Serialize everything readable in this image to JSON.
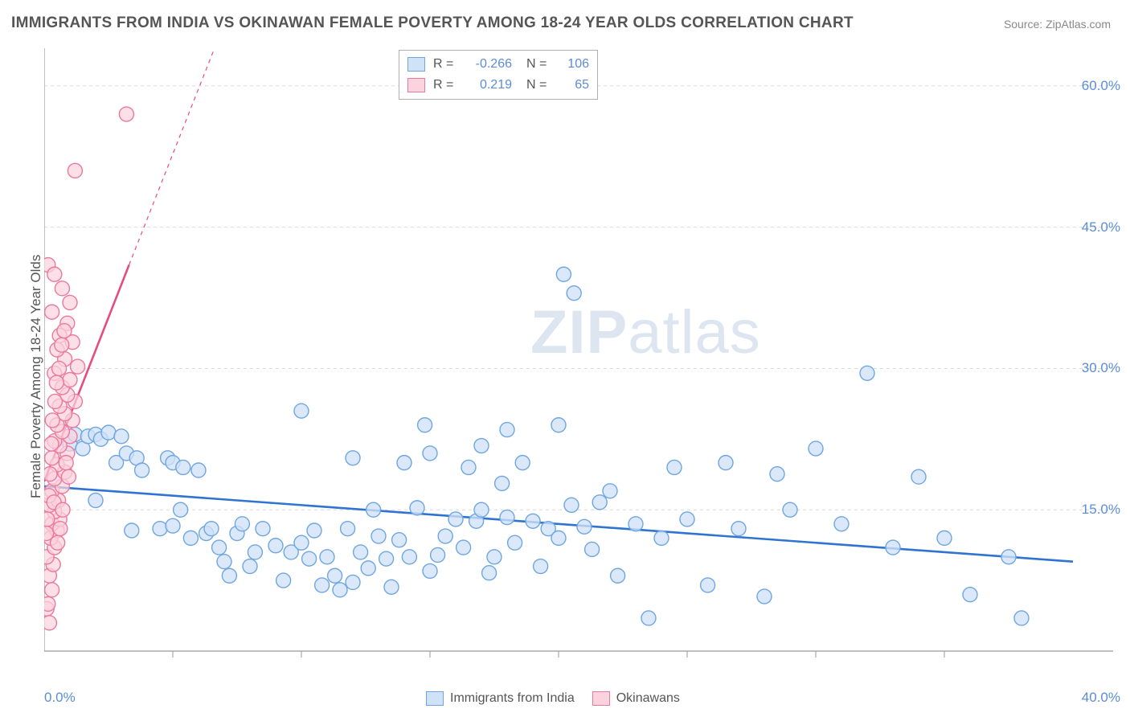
{
  "title": "IMMIGRANTS FROM INDIA VS OKINAWAN FEMALE POVERTY AMONG 18-24 YEAR OLDS CORRELATION CHART",
  "source": "Source: ZipAtlas.com",
  "ylabel": "Female Poverty Among 18-24 Year Olds",
  "watermark_a": "ZIP",
  "watermark_b": "atlas",
  "chart": {
    "type": "scatter",
    "xlim": [
      0,
      40
    ],
    "ylim": [
      0,
      64
    ],
    "x_axis_origin": 0,
    "x_ticks_minor": [
      5,
      10,
      15,
      20,
      25,
      30,
      35
    ],
    "x_tick_labels": [
      {
        "val": 0.0,
        "label": "0.0%"
      },
      {
        "val": 40.0,
        "label": "40.0%"
      }
    ],
    "y_grid": [
      15,
      30,
      45,
      60
    ],
    "y_tick_labels": [
      {
        "val": 15,
        "label": "15.0%"
      },
      {
        "val": 30,
        "label": "30.0%"
      },
      {
        "val": 45,
        "label": "45.0%"
      },
      {
        "val": 60,
        "label": "60.0%"
      }
    ],
    "grid_color": "#d8d8d8",
    "axis_color": "#9a9a9a",
    "background_color": "#ffffff",
    "marker_radius": 9,
    "marker_stroke_width": 1.4,
    "series": [
      {
        "name": "Immigrants from India",
        "fill": "#cfe2f8",
        "stroke": "#6fa6e0",
        "fill_opacity": 0.78,
        "trend": {
          "x1": 0,
          "y1": 17.5,
          "x2": 40,
          "y2": 9.5,
          "color": "#2e74d0",
          "width": 2.6
        },
        "legend_R": "-0.266",
        "legend_N": "106",
        "points": [
          [
            1.0,
            22.0
          ],
          [
            1.2,
            23.0
          ],
          [
            1.5,
            21.5
          ],
          [
            1.7,
            22.8
          ],
          [
            2.0,
            23.0
          ],
          [
            2.0,
            16.0
          ],
          [
            2.2,
            22.5
          ],
          [
            2.5,
            23.2
          ],
          [
            2.8,
            20.0
          ],
          [
            3.0,
            22.8
          ],
          [
            3.2,
            21.0
          ],
          [
            3.4,
            12.8
          ],
          [
            3.6,
            20.5
          ],
          [
            3.8,
            19.2
          ],
          [
            4.5,
            13.0
          ],
          [
            4.8,
            20.5
          ],
          [
            5.0,
            13.3
          ],
          [
            5.0,
            20.0
          ],
          [
            5.3,
            15.0
          ],
          [
            5.4,
            19.5
          ],
          [
            5.7,
            12.0
          ],
          [
            6.0,
            19.2
          ],
          [
            6.3,
            12.5
          ],
          [
            6.5,
            13.0
          ],
          [
            6.8,
            11.0
          ],
          [
            7.0,
            9.5
          ],
          [
            7.2,
            8.0
          ],
          [
            7.5,
            12.5
          ],
          [
            7.7,
            13.5
          ],
          [
            8.0,
            9.0
          ],
          [
            8.2,
            10.5
          ],
          [
            8.5,
            13.0
          ],
          [
            9.0,
            11.2
          ],
          [
            9.3,
            7.5
          ],
          [
            9.6,
            10.5
          ],
          [
            10.0,
            11.5
          ],
          [
            10.0,
            25.5
          ],
          [
            10.3,
            9.8
          ],
          [
            10.5,
            12.8
          ],
          [
            10.8,
            7.0
          ],
          [
            11.0,
            10.0
          ],
          [
            11.3,
            8.0
          ],
          [
            11.5,
            6.5
          ],
          [
            11.8,
            13.0
          ],
          [
            12.0,
            20.5
          ],
          [
            12.0,
            7.3
          ],
          [
            12.3,
            10.5
          ],
          [
            12.6,
            8.8
          ],
          [
            12.8,
            15.0
          ],
          [
            13.0,
            12.2
          ],
          [
            13.3,
            9.8
          ],
          [
            13.5,
            6.8
          ],
          [
            13.8,
            11.8
          ],
          [
            14.0,
            20.0
          ],
          [
            14.2,
            10.0
          ],
          [
            14.5,
            15.2
          ],
          [
            14.8,
            24.0
          ],
          [
            15.0,
            8.5
          ],
          [
            15.0,
            21.0
          ],
          [
            15.3,
            10.2
          ],
          [
            15.6,
            12.2
          ],
          [
            16.0,
            14.0
          ],
          [
            16.3,
            11.0
          ],
          [
            16.5,
            19.5
          ],
          [
            16.8,
            13.8
          ],
          [
            17.0,
            21.8
          ],
          [
            17.0,
            15.0
          ],
          [
            17.3,
            8.3
          ],
          [
            17.5,
            10.0
          ],
          [
            17.8,
            17.8
          ],
          [
            18.0,
            14.2
          ],
          [
            18.0,
            23.5
          ],
          [
            18.3,
            11.5
          ],
          [
            18.6,
            20.0
          ],
          [
            19.0,
            13.8
          ],
          [
            19.3,
            9.0
          ],
          [
            19.6,
            13.0
          ],
          [
            20.0,
            24.0
          ],
          [
            20.0,
            12.0
          ],
          [
            20.2,
            40.0
          ],
          [
            20.5,
            15.5
          ],
          [
            20.6,
            38.0
          ],
          [
            21.0,
            13.2
          ],
          [
            21.3,
            10.8
          ],
          [
            21.6,
            15.8
          ],
          [
            22.0,
            17.0
          ],
          [
            22.3,
            8.0
          ],
          [
            23.0,
            13.5
          ],
          [
            23.5,
            3.5
          ],
          [
            24.0,
            12.0
          ],
          [
            24.5,
            19.5
          ],
          [
            25.0,
            14.0
          ],
          [
            25.8,
            7.0
          ],
          [
            26.5,
            20.0
          ],
          [
            27.0,
            13.0
          ],
          [
            28.0,
            5.8
          ],
          [
            28.5,
            18.8
          ],
          [
            29.0,
            15.0
          ],
          [
            30.0,
            21.5
          ],
          [
            31.0,
            13.5
          ],
          [
            32.0,
            29.5
          ],
          [
            33.0,
            11.0
          ],
          [
            34.0,
            18.5
          ],
          [
            35.0,
            12.0
          ],
          [
            36.0,
            6.0
          ],
          [
            37.5,
            10.0
          ],
          [
            38.0,
            3.5
          ]
        ]
      },
      {
        "name": "Okinawans",
        "fill": "#fbd3de",
        "stroke": "#ec789e",
        "fill_opacity": 0.72,
        "trend": {
          "x1": 0,
          "y1": 18.0,
          "x2": 3.3,
          "y2": 41.0,
          "color": "#e64b84",
          "width": 2.6,
          "extend_x2": 8.5,
          "extend_y2": 77.0
        },
        "legend_R": "0.219",
        "legend_N": "65",
        "points": [
          [
            0.1,
            4.5
          ],
          [
            0.2,
            3.0
          ],
          [
            0.15,
            5.0
          ],
          [
            0.3,
            6.5
          ],
          [
            0.2,
            8.0
          ],
          [
            0.35,
            9.2
          ],
          [
            0.1,
            10.0
          ],
          [
            0.4,
            11.0
          ],
          [
            0.25,
            12.0
          ],
          [
            0.5,
            12.8
          ],
          [
            0.3,
            13.5
          ],
          [
            0.6,
            14.0
          ],
          [
            0.4,
            14.8
          ],
          [
            0.2,
            15.5
          ],
          [
            0.55,
            16.0
          ],
          [
            0.3,
            17.0
          ],
          [
            0.7,
            17.5
          ],
          [
            0.4,
            18.3
          ],
          [
            0.8,
            19.0
          ],
          [
            0.5,
            19.8
          ],
          [
            0.3,
            20.5
          ],
          [
            0.9,
            21.0
          ],
          [
            0.6,
            21.8
          ],
          [
            0.4,
            22.3
          ],
          [
            1.0,
            22.8
          ],
          [
            0.7,
            23.3
          ],
          [
            0.5,
            24.0
          ],
          [
            1.1,
            24.5
          ],
          [
            0.8,
            25.2
          ],
          [
            0.6,
            26.0
          ],
          [
            1.2,
            26.5
          ],
          [
            0.9,
            27.2
          ],
          [
            0.7,
            28.0
          ],
          [
            1.0,
            28.8
          ],
          [
            0.4,
            29.5
          ],
          [
            1.3,
            30.2
          ],
          [
            0.8,
            31.0
          ],
          [
            0.5,
            32.0
          ],
          [
            1.1,
            32.8
          ],
          [
            0.6,
            33.5
          ],
          [
            0.9,
            34.8
          ],
          [
            0.3,
            36.0
          ],
          [
            1.0,
            37.0
          ],
          [
            0.15,
            41.0
          ],
          [
            0.7,
            38.5
          ],
          [
            0.4,
            40.0
          ],
          [
            0.95,
            18.5
          ],
          [
            0.85,
            20.0
          ],
          [
            0.12,
            14.0
          ],
          [
            0.18,
            16.5
          ],
          [
            0.22,
            18.8
          ],
          [
            0.08,
            12.5
          ],
          [
            0.28,
            22.0
          ],
          [
            0.32,
            24.5
          ],
          [
            0.38,
            15.8
          ],
          [
            0.42,
            26.5
          ],
          [
            0.48,
            28.5
          ],
          [
            0.52,
            11.5
          ],
          [
            0.58,
            30.0
          ],
          [
            0.62,
            13.0
          ],
          [
            1.2,
            51.0
          ],
          [
            0.68,
            32.5
          ],
          [
            0.72,
            15.0
          ],
          [
            0.78,
            34.0
          ],
          [
            3.2,
            57.0
          ]
        ]
      }
    ],
    "legend_bottom": [
      {
        "label": "Immigrants from India",
        "fill": "#cfe2f8",
        "stroke": "#6fa6e0"
      },
      {
        "label": "Okinawans",
        "fill": "#fbd3de",
        "stroke": "#ec789e"
      }
    ]
  }
}
